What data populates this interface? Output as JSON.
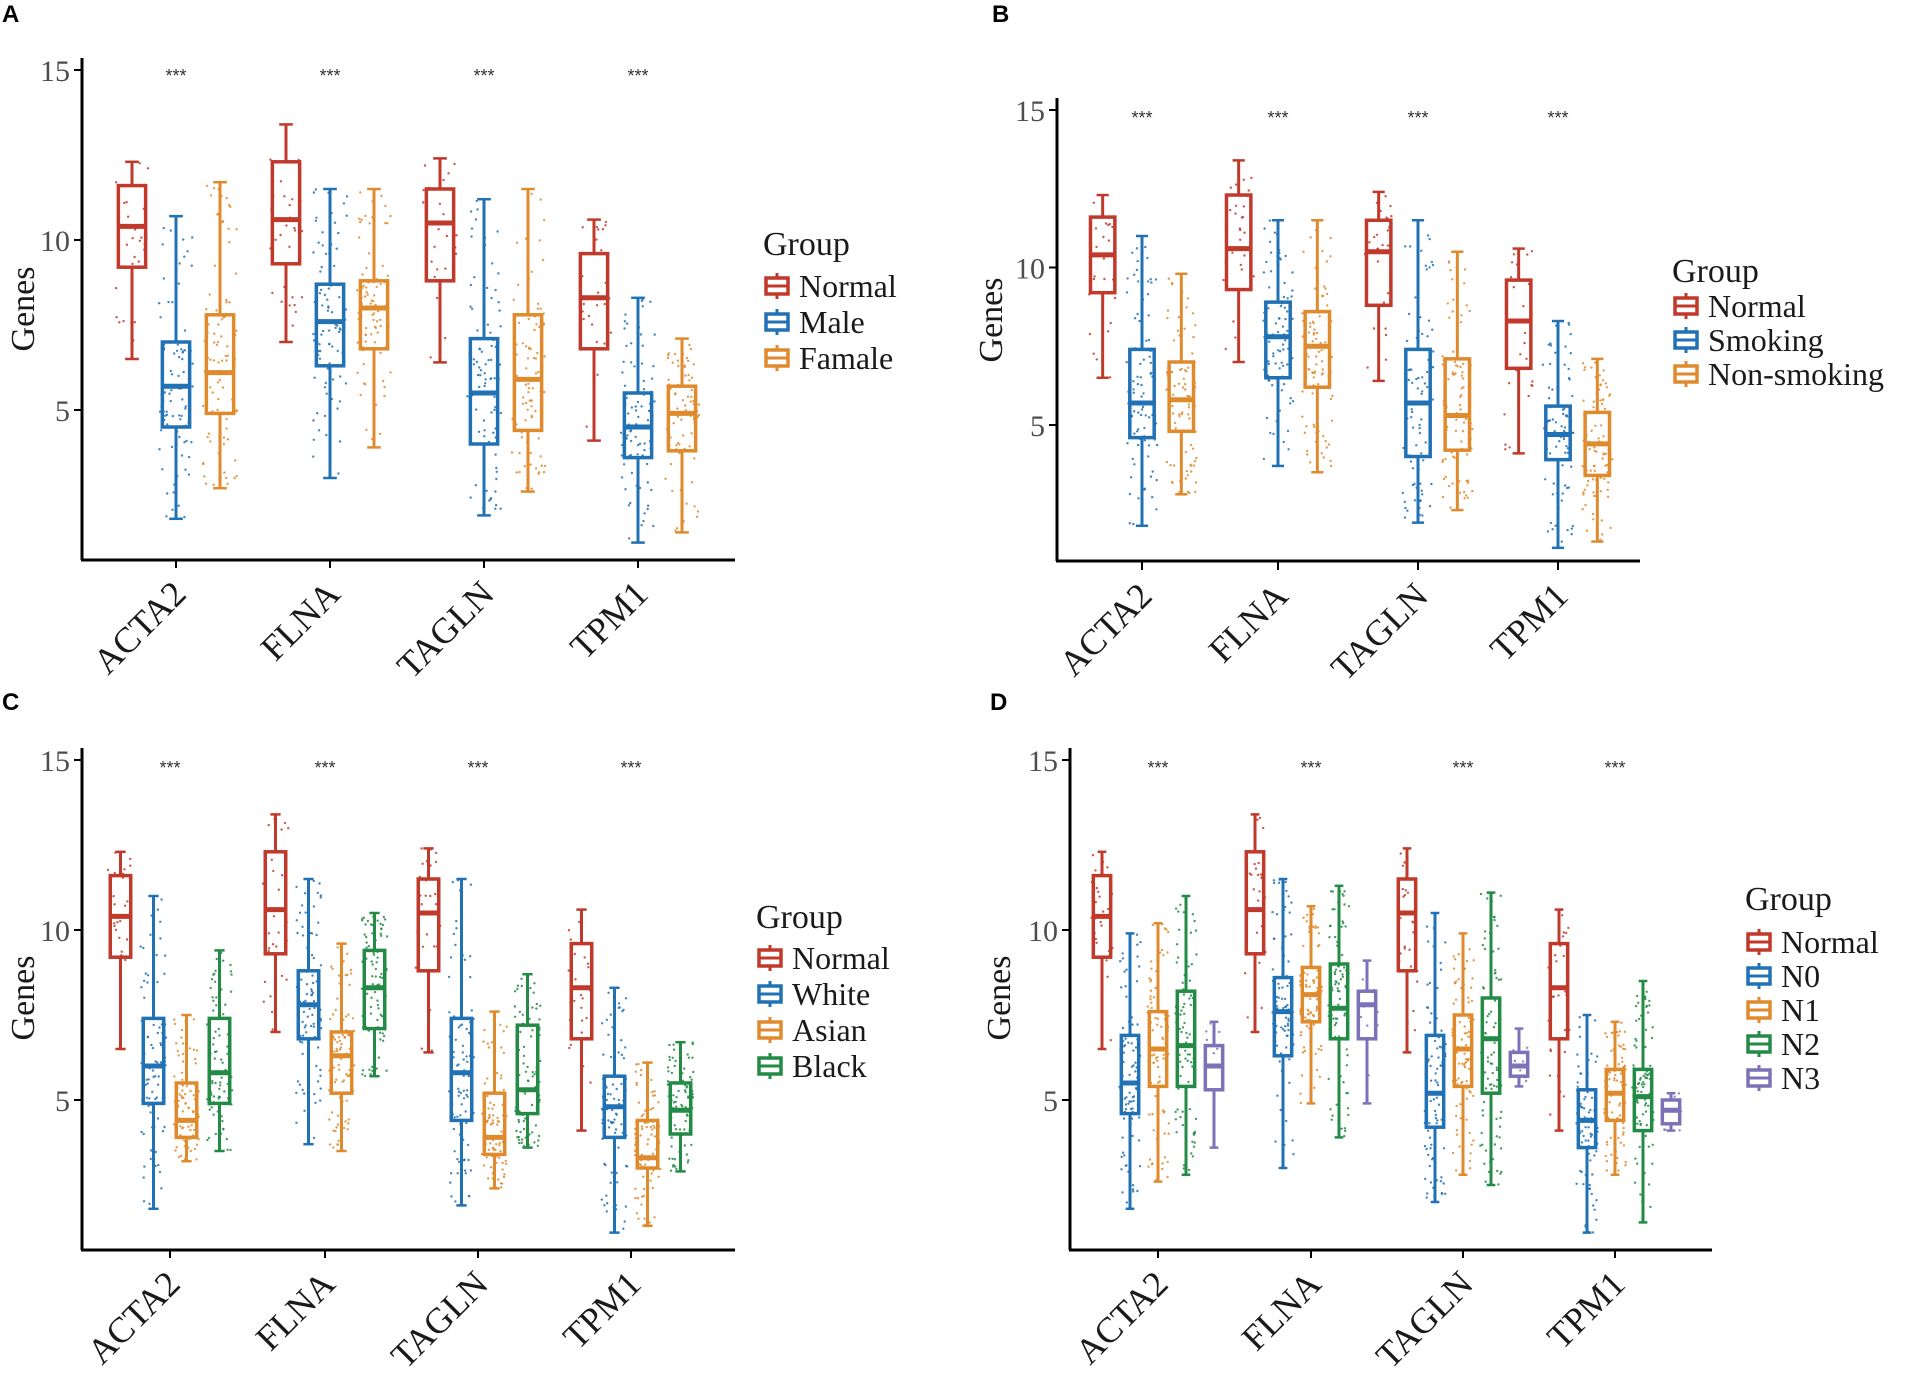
{
  "colors": {
    "Normal": "#c0392b",
    "Male": "#2171b5",
    "Famale": "#e08a2e",
    "Smoking": "#2171b5",
    "Non-smoking": "#e08a2e",
    "White": "#2171b5",
    "Asian": "#e08a2e",
    "Black": "#238b45",
    "N0": "#2171b5",
    "N1": "#e08a2e",
    "N2": "#238b45",
    "N3": "#7b72b8",
    "axis": "#000000",
    "tick_text": "#4d4d4d",
    "sig": "#333333"
  },
  "chart_data": [
    {
      "panel": "A",
      "type": "box",
      "ylabel": "Genes",
      "ylim": [
        0.8,
        15.5
      ],
      "yticks": [
        "5",
        "10",
        "15"
      ],
      "categories": [
        "ACTA2",
        "FLNA",
        "TAGLN",
        "TPM1"
      ],
      "significance": [
        "***",
        "***",
        "***",
        "***"
      ],
      "legend_title": "Group",
      "groups": [
        "Normal",
        "Male",
        "Famale"
      ],
      "boxes": {
        "ACTA2": [
          [
            6.5,
            9.2,
            10.4,
            11.6,
            12.3
          ],
          [
            1.8,
            4.5,
            5.7,
            7.0,
            10.7
          ],
          [
            2.7,
            4.9,
            6.1,
            7.8,
            11.7
          ]
        ],
        "FLNA": [
          [
            7.0,
            9.3,
            10.6,
            12.3,
            13.4
          ],
          [
            3.0,
            6.3,
            7.6,
            8.7,
            11.5
          ],
          [
            3.9,
            6.8,
            8.0,
            8.8,
            11.5
          ]
        ],
        "TAGLN": [
          [
            6.4,
            8.8,
            10.5,
            11.5,
            12.4
          ],
          [
            1.9,
            4.0,
            5.5,
            7.1,
            11.2
          ],
          [
            2.6,
            4.4,
            5.9,
            7.8,
            11.5
          ]
        ],
        "TPM1": [
          [
            4.1,
            6.8,
            8.3,
            9.6,
            10.6
          ],
          [
            1.1,
            3.6,
            4.5,
            5.5,
            8.3
          ],
          [
            1.4,
            3.8,
            4.9,
            5.7,
            7.1
          ]
        ]
      }
    },
    {
      "panel": "B",
      "type": "box",
      "ylabel": "Genes",
      "ylim": [
        0.8,
        15.5
      ],
      "yticks": [
        "5",
        "10",
        "15"
      ],
      "categories": [
        "ACTA2",
        "FLNA",
        "TAGLN",
        "TPM1"
      ],
      "significance": [
        "***",
        "***",
        "***",
        "***"
      ],
      "legend_title": "Group",
      "groups": [
        "Normal",
        "Smoking",
        "Non-smoking"
      ],
      "boxes": {
        "ACTA2": [
          [
            6.5,
            9.2,
            10.4,
            11.6,
            12.3
          ],
          [
            1.8,
            4.6,
            5.7,
            7.4,
            11.0
          ],
          [
            2.8,
            4.8,
            5.8,
            7.0,
            9.8
          ]
        ],
        "FLNA": [
          [
            7.0,
            9.3,
            10.6,
            12.3,
            13.4
          ],
          [
            3.7,
            6.5,
            7.8,
            8.9,
            11.5
          ],
          [
            3.5,
            6.2,
            7.5,
            8.6,
            11.5
          ]
        ],
        "TAGLN": [
          [
            6.4,
            8.8,
            10.5,
            11.5,
            12.4
          ],
          [
            1.9,
            4.0,
            5.7,
            7.4,
            11.5
          ],
          [
            2.3,
            4.2,
            5.3,
            7.1,
            10.5
          ]
        ],
        "TPM1": [
          [
            4.1,
            6.8,
            8.3,
            9.6,
            10.6
          ],
          [
            1.1,
            3.9,
            4.7,
            5.6,
            8.3
          ],
          [
            1.3,
            3.4,
            4.4,
            5.4,
            7.1
          ]
        ]
      }
    },
    {
      "panel": "C",
      "type": "box",
      "ylabel": "Genes",
      "ylim": [
        0.8,
        15.5
      ],
      "yticks": [
        "5",
        "10",
        "15"
      ],
      "categories": [
        "ACTA2",
        "FLNA",
        "TAGLN",
        "TPM1"
      ],
      "significance": [
        "***",
        "***",
        "***",
        "***"
      ],
      "legend_title": "Group",
      "groups": [
        "Normal",
        "White",
        "Asian",
        "Black"
      ],
      "boxes": {
        "ACTA2": [
          [
            6.5,
            9.2,
            10.4,
            11.6,
            12.3
          ],
          [
            1.8,
            4.9,
            6.0,
            7.4,
            11.0
          ],
          [
            3.2,
            3.9,
            4.4,
            5.5,
            7.5
          ],
          [
            3.5,
            4.9,
            5.8,
            7.4,
            9.4
          ]
        ],
        "FLNA": [
          [
            7.0,
            9.3,
            10.6,
            12.3,
            13.4
          ],
          [
            3.7,
            6.8,
            7.8,
            8.8,
            11.5
          ],
          [
            3.5,
            5.2,
            6.3,
            7.0,
            9.6
          ],
          [
            5.7,
            7.1,
            8.3,
            9.4,
            10.5
          ]
        ],
        "TAGLN": [
          [
            6.4,
            8.8,
            10.5,
            11.5,
            12.4
          ],
          [
            1.9,
            4.4,
            5.8,
            7.4,
            11.5
          ],
          [
            2.4,
            3.4,
            3.9,
            5.2,
            7.6
          ],
          [
            3.6,
            4.6,
            5.3,
            7.2,
            8.7
          ]
        ],
        "TPM1": [
          [
            4.1,
            6.8,
            8.3,
            9.6,
            10.6
          ],
          [
            1.1,
            3.9,
            4.8,
            5.7,
            8.3
          ],
          [
            1.3,
            3.0,
            3.3,
            4.4,
            6.1
          ],
          [
            2.9,
            4.0,
            4.7,
            5.5,
            6.7
          ]
        ]
      }
    },
    {
      "panel": "D",
      "type": "box",
      "ylabel": "Genes",
      "ylim": [
        0.8,
        15.5
      ],
      "yticks": [
        "5",
        "10",
        "15"
      ],
      "categories": [
        "ACTA2",
        "FLNA",
        "TAGLN",
        "TPM1"
      ],
      "significance": [
        "***",
        "***",
        "***",
        "***"
      ],
      "legend_title": "Group",
      "groups": [
        "Normal",
        "N0",
        "N1",
        "N2",
        "N3"
      ],
      "boxes": {
        "ACTA2": [
          [
            6.5,
            9.2,
            10.4,
            11.6,
            12.3
          ],
          [
            1.8,
            4.6,
            5.5,
            6.9,
            9.9
          ],
          [
            2.6,
            5.4,
            6.5,
            7.6,
            10.2
          ],
          [
            2.8,
            5.4,
            6.6,
            8.2,
            11.0
          ],
          [
            3.6,
            5.3,
            6.0,
            6.6,
            7.3
          ]
        ],
        "FLNA": [
          [
            7.0,
            9.3,
            10.6,
            12.3,
            13.4
          ],
          [
            3.0,
            6.3,
            7.6,
            8.6,
            11.5
          ],
          [
            4.9,
            7.3,
            8.1,
            8.9,
            10.7
          ],
          [
            3.9,
            6.8,
            7.7,
            9.0,
            11.3
          ],
          [
            4.9,
            6.8,
            7.8,
            8.2,
            9.1
          ]
        ],
        "TAGLN": [
          [
            6.4,
            8.8,
            10.5,
            11.5,
            12.4
          ],
          [
            2.0,
            4.2,
            5.2,
            6.9,
            10.5
          ],
          [
            2.8,
            5.4,
            6.5,
            7.5,
            9.9
          ],
          [
            2.5,
            5.2,
            6.8,
            8.0,
            11.1
          ],
          [
            5.4,
            5.7,
            6.0,
            6.4,
            7.1
          ]
        ],
        "TPM1": [
          [
            4.1,
            6.8,
            8.3,
            9.6,
            10.6
          ],
          [
            1.1,
            3.6,
            4.4,
            5.3,
            7.5
          ],
          [
            2.8,
            4.4,
            5.2,
            5.9,
            7.3
          ],
          [
            1.4,
            4.1,
            5.1,
            5.9,
            8.5
          ],
          [
            4.1,
            4.3,
            4.7,
            5.0,
            5.2
          ]
        ]
      }
    }
  ]
}
